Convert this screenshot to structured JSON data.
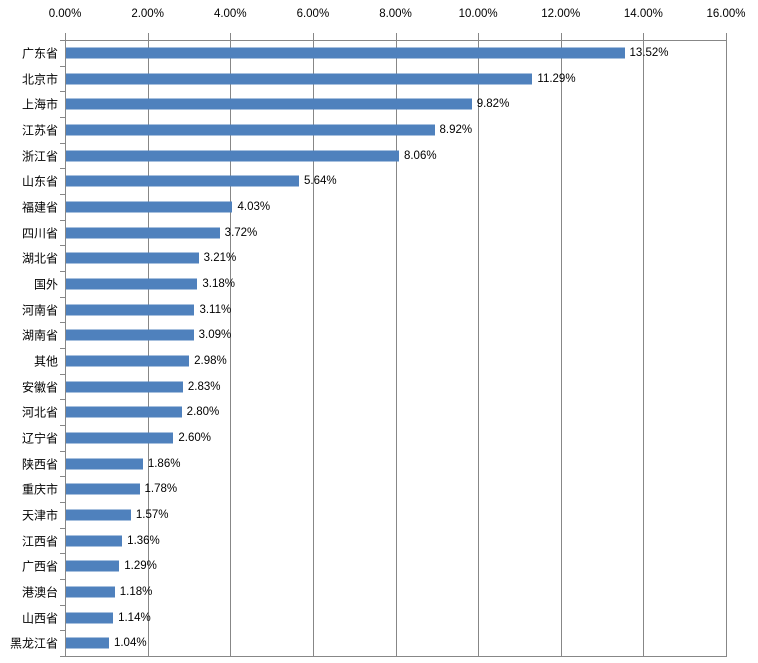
{
  "chart_data": {
    "type": "bar",
    "orientation": "horizontal",
    "title": "",
    "categories": [
      "广东省",
      "北京市",
      "上海市",
      "江苏省",
      "浙江省",
      "山东省",
      "福建省",
      "四川省",
      "湖北省",
      "国外",
      "河南省",
      "湖南省",
      "其他",
      "安徽省",
      "河北省",
      "辽宁省",
      "陕西省",
      "重庆市",
      "天津市",
      "江西省",
      "广西省",
      "港澳台",
      "山西省",
      "黑龙江省"
    ],
    "values": [
      13.52,
      11.29,
      9.82,
      8.92,
      8.06,
      5.64,
      4.03,
      3.72,
      3.21,
      3.18,
      3.11,
      3.09,
      2.98,
      2.83,
      2.8,
      2.6,
      1.86,
      1.78,
      1.57,
      1.36,
      1.29,
      1.18,
      1.14,
      1.04
    ],
    "value_labels": [
      "13.52%",
      "11.29%",
      "9.82%",
      "8.92%",
      "8.06%",
      "5.64%",
      "4.03%",
      "3.72%",
      "3.21%",
      "3.18%",
      "3.11%",
      "3.09%",
      "2.98%",
      "2.83%",
      "2.80%",
      "2.60%",
      "1.86%",
      "1.78%",
      "1.57%",
      "1.36%",
      "1.29%",
      "1.18%",
      "1.14%",
      "1.04%"
    ],
    "x_axis": {
      "position": "top",
      "min": 0,
      "max": 16,
      "step": 2,
      "tick_labels": [
        "0.00%",
        "2.00%",
        "4.00%",
        "6.00%",
        "8.00%",
        "10.00%",
        "12.00%",
        "14.00%",
        "16.00%"
      ]
    },
    "grid": "vertical-major",
    "legend": "none",
    "colors": {
      "bar": "#4F81BD",
      "gridline": "#878787",
      "axis": "#878787",
      "text": "#000000",
      "background": "#FFFFFF"
    }
  }
}
